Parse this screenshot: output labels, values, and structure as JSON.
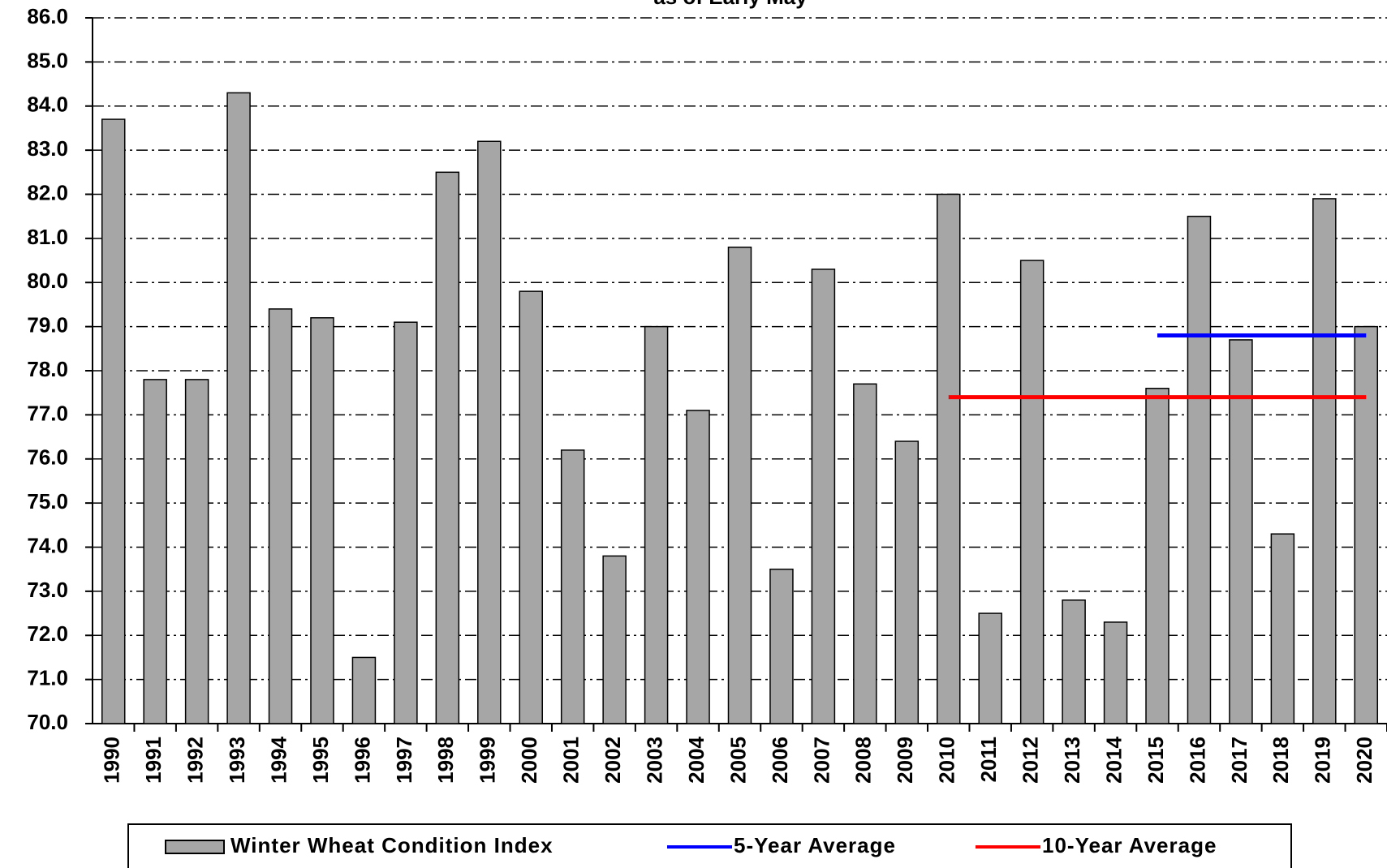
{
  "chart_data": {
    "type": "bar",
    "subtitle": "as of Early May",
    "categories": [
      "1990",
      "1991",
      "1992",
      "1993",
      "1994",
      "1995",
      "1996",
      "1997",
      "1998",
      "1999",
      "2000",
      "2001",
      "2002",
      "2003",
      "2004",
      "2005",
      "2006",
      "2007",
      "2008",
      "2009",
      "2010",
      "2011",
      "2012",
      "2013",
      "2014",
      "2015",
      "2016",
      "2017",
      "2018",
      "2019",
      "2020"
    ],
    "series": [
      {
        "name": "Winter Wheat Condition Index",
        "type": "bar",
        "color": "#a6a6a6",
        "values": [
          83.7,
          77.8,
          77.8,
          84.3,
          79.4,
          79.2,
          71.5,
          79.1,
          82.5,
          83.2,
          79.8,
          76.2,
          73.8,
          79.0,
          77.1,
          80.8,
          73.5,
          80.3,
          77.7,
          76.4,
          82.0,
          72.5,
          80.5,
          72.8,
          72.3,
          77.6,
          81.5,
          78.7,
          74.3,
          81.9,
          79.0
        ]
      },
      {
        "name": "5-Year Average",
        "type": "line",
        "color": "#0000ff",
        "values": [
          null,
          null,
          null,
          null,
          null,
          null,
          null,
          null,
          null,
          null,
          null,
          null,
          null,
          null,
          null,
          null,
          null,
          null,
          null,
          null,
          null,
          null,
          null,
          null,
          null,
          78.8,
          78.8,
          78.8,
          78.8,
          78.8,
          78.8
        ]
      },
      {
        "name": "10-Year Average",
        "type": "line",
        "color": "#ff0000",
        "values": [
          null,
          null,
          null,
          null,
          null,
          null,
          null,
          null,
          null,
          null,
          null,
          null,
          null,
          null,
          null,
          null,
          null,
          null,
          null,
          null,
          77.4,
          77.4,
          77.4,
          77.4,
          77.4,
          77.4,
          77.4,
          77.4,
          77.4,
          77.4,
          77.4
        ]
      }
    ],
    "ylim": [
      70,
      86
    ],
    "yticks": [
      {
        "value": 70,
        "label": "70.0"
      },
      {
        "value": 71,
        "label": "71.0"
      },
      {
        "value": 72,
        "label": "72.0"
      },
      {
        "value": 73,
        "label": "73.0"
      },
      {
        "value": 74,
        "label": "74.0"
      },
      {
        "value": 75,
        "label": "75.0"
      },
      {
        "value": 76,
        "label": "76.0"
      },
      {
        "value": 77,
        "label": "77.0"
      },
      {
        "value": 78,
        "label": "78.0"
      },
      {
        "value": 79,
        "label": "79.0"
      },
      {
        "value": 80,
        "label": "80.0"
      },
      {
        "value": 81,
        "label": "81.0"
      },
      {
        "value": 82,
        "label": "82.0"
      },
      {
        "value": 83,
        "label": "83.0"
      },
      {
        "value": 84,
        "label": "84.0"
      },
      {
        "value": 85,
        "label": "85.0"
      },
      {
        "value": 86,
        "label": "86.0"
      }
    ],
    "grid": true
  }
}
